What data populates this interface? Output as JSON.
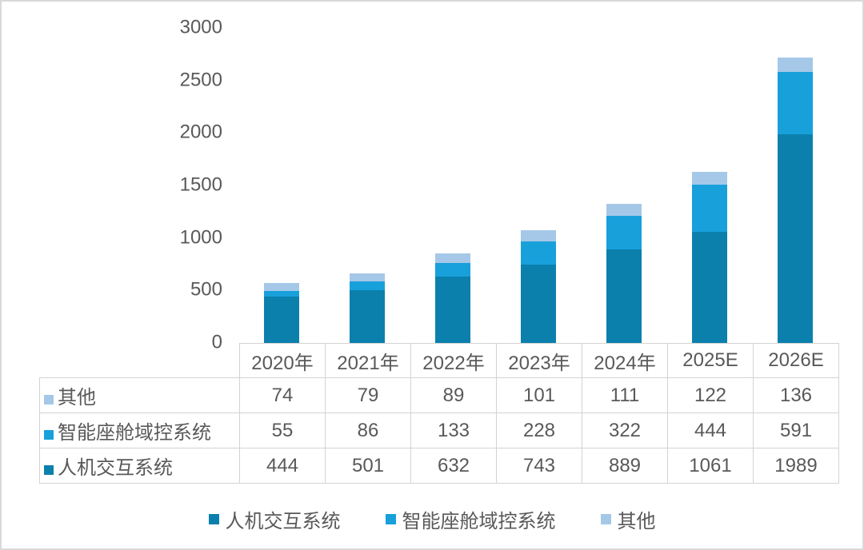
{
  "chart_data": {
    "type": "bar",
    "stacked": true,
    "title": "",
    "xlabel": "",
    "ylabel": "",
    "categories": [
      "2020年",
      "2021年",
      "2022年",
      "2023年",
      "2024年",
      "2025E",
      "2026E"
    ],
    "series": [
      {
        "name": "人机交互系统",
        "color": "#0b80ad",
        "values": [
          444,
          501,
          632,
          743,
          889,
          1061,
          1989
        ]
      },
      {
        "name": "智能座舱域控系统",
        "color": "#18a0db",
        "values": [
          55,
          86,
          133,
          228,
          322,
          444,
          591
        ]
      },
      {
        "name": "其他",
        "color": "#a5c8e8",
        "values": [
          74,
          79,
          89,
          101,
          111,
          122,
          136
        ]
      }
    ],
    "ylim": [
      0,
      3000
    ],
    "yticks": [
      3000,
      2500,
      2000,
      1500,
      1000,
      500,
      0
    ],
    "grid": false,
    "legend_position": "bottom",
    "data_table_rows_order": [
      "其他",
      "智能座舱域控系统",
      "人机交互系统"
    ]
  },
  "colors": {
    "text": "#595959",
    "table_border": "#d3d3d3",
    "frame_border": "#d9d9d9",
    "background": "#ffffff"
  }
}
